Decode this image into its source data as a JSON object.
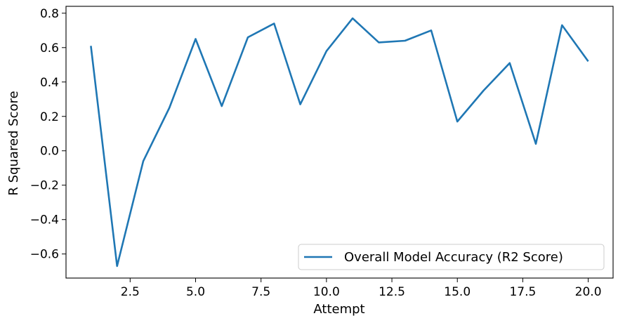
{
  "chart_data": {
    "type": "line",
    "title": "",
    "xlabel": "Attempt",
    "ylabel": "R Squared Score",
    "xlim": [
      0.05,
      20.95
    ],
    "ylim": [
      -0.74,
      0.84
    ],
    "xticks": [
      2.5,
      5.0,
      7.5,
      10.0,
      12.5,
      15.0,
      17.5,
      20.0
    ],
    "xtick_labels": [
      "2.5",
      "5.0",
      "7.5",
      "10.0",
      "12.5",
      "15.0",
      "17.5",
      "20.0"
    ],
    "yticks": [
      -0.6,
      -0.4,
      -0.2,
      0.0,
      0.2,
      0.4,
      0.6,
      0.8
    ],
    "ytick_labels": [
      "−0.6",
      "−0.4",
      "−0.2",
      "0.0",
      "0.2",
      "0.4",
      "0.6",
      "0.8"
    ],
    "grid": false,
    "legend_position": "lower-right",
    "series": [
      {
        "name": "Overall Model Accuracy (R2 Score)",
        "color": "#1f77b4",
        "x": [
          1,
          2,
          3,
          4,
          5,
          6,
          7,
          8,
          9,
          10,
          11,
          12,
          13,
          14,
          15,
          16,
          17,
          18,
          19,
          20
        ],
        "y": [
          0.61,
          -0.67,
          -0.06,
          0.25,
          0.65,
          0.26,
          0.66,
          0.74,
          0.27,
          0.58,
          0.77,
          0.63,
          0.64,
          0.7,
          0.17,
          0.35,
          0.51,
          0.04,
          0.73,
          0.52
        ]
      }
    ]
  }
}
